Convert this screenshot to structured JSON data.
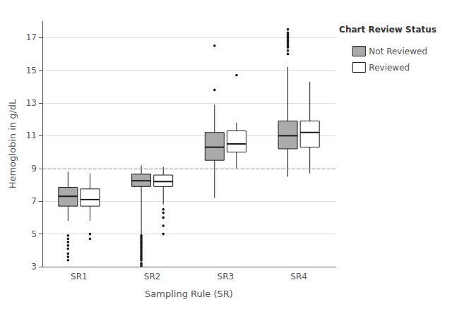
{
  "chart_data": {
    "type": "boxplot",
    "xlabel": "Sampling Rule (SR)",
    "ylabel": "Hemoglobin in g/dL",
    "categories": [
      "SR1",
      "SR2",
      "SR3",
      "SR4"
    ],
    "legend_title": "Chart Review Status",
    "legend": "right",
    "grid": true,
    "ylim": [
      3,
      18
    ],
    "yticks": [
      3,
      5,
      7,
      9,
      11,
      13,
      15,
      17
    ],
    "hline_y": 9,
    "edge_color": "#1a1a1a",
    "series": [
      {
        "name": "Not Reviewed",
        "color": "#aaaaaa",
        "values": [
          [
            5.8,
            6.7,
            7.3,
            7.85,
            8.8
          ],
          [
            3.2,
            7.9,
            8.25,
            8.65,
            9.2
          ],
          [
            7.2,
            9.5,
            10.3,
            11.2,
            12.9
          ],
          [
            8.5,
            10.2,
            11.0,
            11.9,
            15.2
          ]
        ],
        "outliers": [
          [
            4.9,
            4.7,
            4.5,
            4.3,
            4.1,
            3.8,
            3.6,
            3.4
          ],
          [
            3.0,
            3.1,
            3.2,
            3.4,
            3.5,
            3.6,
            3.7,
            3.8,
            3.9,
            4.0,
            4.1,
            4.2,
            4.3,
            4.4,
            4.5,
            4.6,
            4.7,
            4.8,
            4.9
          ],
          [
            13.8,
            16.5
          ],
          [
            16.0,
            16.2,
            16.4,
            16.5,
            16.6,
            16.7,
            16.8,
            16.9,
            17.0,
            17.1,
            17.2,
            17.3,
            17.5
          ]
        ]
      },
      {
        "name": "Reviewed",
        "color": "#ffffff",
        "values": [
          [
            5.8,
            6.7,
            7.1,
            7.75,
            8.7
          ],
          [
            6.8,
            7.9,
            8.2,
            8.6,
            9.1
          ],
          [
            9.0,
            10.0,
            10.5,
            11.3,
            11.8
          ],
          [
            8.7,
            10.3,
            11.2,
            11.9,
            14.3
          ]
        ],
        "outliers": [
          [
            5.0,
            4.7
          ],
          [
            6.5,
            6.3,
            6.0,
            5.5,
            5.0
          ],
          [
            14.7
          ],
          []
        ]
      }
    ]
  }
}
